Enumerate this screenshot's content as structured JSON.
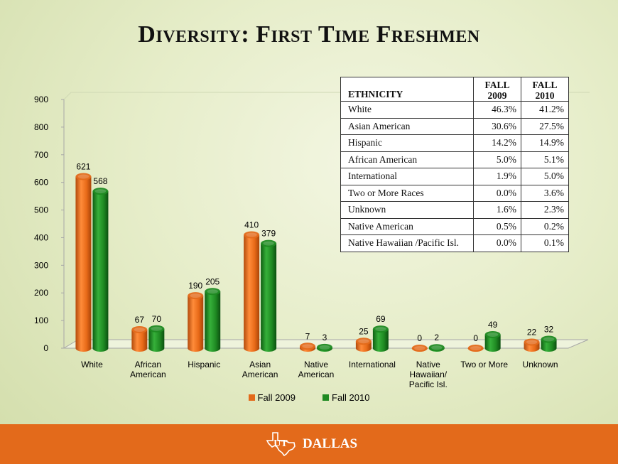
{
  "title": "Diversity: First Time Freshmen",
  "chart_data": {
    "type": "bar",
    "categories": [
      "White",
      "African American",
      "Hispanic",
      "Asian American",
      "Native American",
      "International",
      "Native Hawaiian/ Pacific Isl.",
      "Two or More",
      "Unknown"
    ],
    "category_lines": [
      [
        "White"
      ],
      [
        "African",
        "American"
      ],
      [
        "Hispanic"
      ],
      [
        "Asian",
        "American"
      ],
      [
        "Native",
        "American"
      ],
      [
        "International"
      ],
      [
        "Native",
        "Hawaiian/",
        "Pacific Isl."
      ],
      [
        "Two or More"
      ],
      [
        "Unknown"
      ]
    ],
    "series": [
      {
        "name": "Fall 2009",
        "color": "#e36a1b",
        "values": [
          621,
          67,
          190,
          410,
          7,
          25,
          0,
          0,
          22
        ]
      },
      {
        "name": "Fall 2010",
        "color": "#1f8a22",
        "values": [
          568,
          70,
          205,
          379,
          3,
          69,
          2,
          49,
          32
        ]
      }
    ],
    "ylim": [
      0,
      900
    ],
    "yticks": [
      0,
      100,
      200,
      300,
      400,
      500,
      600,
      700,
      800,
      900
    ],
    "legend_position": "bottom",
    "grid": false
  },
  "table": {
    "headers": [
      "ETHNICITY",
      "FALL 2009",
      "FALL 2010"
    ],
    "header_lines": [
      [
        "ETHNICITY"
      ],
      [
        "FALL",
        "2009"
      ],
      [
        "FALL",
        "2010"
      ]
    ],
    "rows": [
      [
        "White",
        "46.3%",
        "41.2%"
      ],
      [
        "Asian American",
        "30.6%",
        "27.5%"
      ],
      [
        "Hispanic",
        "14.2%",
        "14.9%"
      ],
      [
        "African American",
        "5.0%",
        "5.1%"
      ],
      [
        "International",
        "1.9%",
        "5.0%"
      ],
      [
        "Two or More Races",
        "0.0%",
        "3.6%"
      ],
      [
        "Unknown",
        "1.6%",
        "2.3%"
      ],
      [
        "Native American",
        "0.5%",
        "0.2%"
      ],
      [
        "Native Hawaiian /Pacific Isl.",
        "0.0%",
        "0.1%"
      ]
    ]
  },
  "footer": {
    "logo_text": "DALLAS",
    "logo_monogram": "UT",
    "logo_icon": "texas-state-icon",
    "color": "#e36a1b"
  }
}
